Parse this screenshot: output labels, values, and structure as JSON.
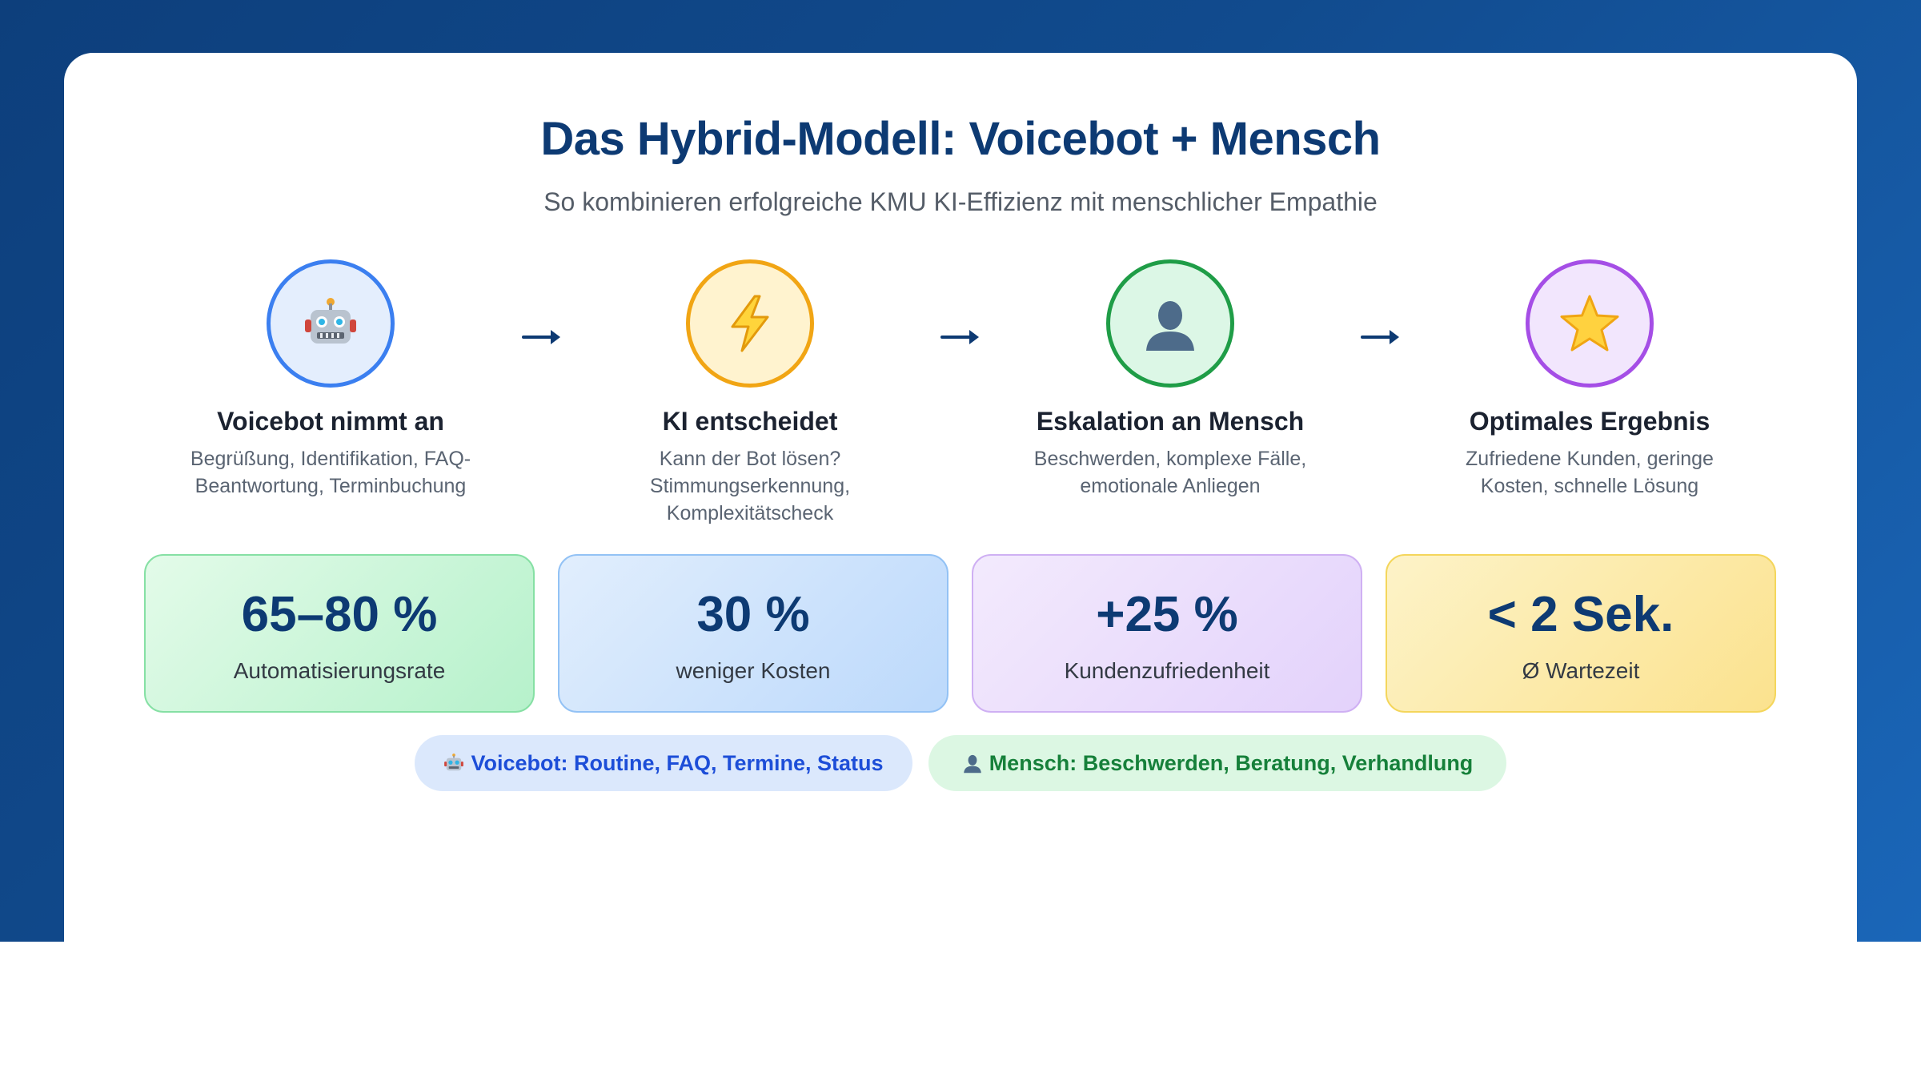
{
  "header": {
    "title": "Das Hybrid-Modell: Voicebot + Mensch",
    "subtitle": "So kombinieren erfolgreiche KMU KI-Effizienz mit menschlicher Empathie"
  },
  "steps": [
    {
      "icon": "robot-icon",
      "color": "#3b7ff0",
      "fill": "#e4eefd",
      "title": "Voicebot nimmt an",
      "desc_line1": "Begrüßung, Identifikation, FAQ-",
      "desc_line2": "Beantwortung, Terminbuchung",
      "desc_line3": ""
    },
    {
      "icon": "lightning-icon",
      "color": "#f1a514",
      "fill": "#fff3cf",
      "title": "KI entscheidet",
      "desc_line1": "Kann der Bot lösen?",
      "desc_line2": "Stimmungserkennung,",
      "desc_line3": "Komplexitätscheck"
    },
    {
      "icon": "person-icon",
      "color": "#1f9d47",
      "fill": "#dcf7e6",
      "title": "Eskalation an Mensch",
      "desc_line1": "Beschwerden, komplexe Fälle,",
      "desc_line2": "emotionale Anliegen",
      "desc_line3": ""
    },
    {
      "icon": "star-icon",
      "color": "#a54ee6",
      "fill": "#f2e6fd",
      "title": "Optimales Ergebnis",
      "desc_line1": "Zufriedene Kunden, geringe",
      "desc_line2": "Kosten, schnelle Lösung",
      "desc_line3": ""
    }
  ],
  "arrow_icon": "arrow-right-icon",
  "stats": [
    {
      "value": "65–80 %",
      "label": "Automatisierungsrate",
      "border": "#86e0a4",
      "bg_from": "#e3fbe9",
      "bg_to": "#b6f1cb"
    },
    {
      "value": "30 %",
      "label": "weniger Kosten",
      "border": "#93c2f5",
      "bg_from": "#e1eefd",
      "bg_to": "#bcd9fb"
    },
    {
      "value": "+25 %",
      "label": "Kundenzufriedenheit",
      "border": "#cfb0f3",
      "bg_from": "#f3eafd",
      "bg_to": "#e3d2fb"
    },
    {
      "value": "< 2 Sek.",
      "label": "Ø Wartezeit",
      "border": "#f4d65c",
      "bg_from": "#fdf3c8",
      "bg_to": "#fbe28e"
    }
  ],
  "pills": [
    {
      "icon": "robot-icon",
      "text": "Voicebot: Routine, FAQ, Termine, Status",
      "color": "#1d4ed8",
      "bg": "#dbe8fc"
    },
    {
      "icon": "person-icon",
      "text": "Mensch: Beschwerden, Beratung, Verhandlung",
      "color": "#16803a",
      "bg": "#dcf7e3"
    }
  ],
  "colors": {
    "background_from": "#0d3f7c",
    "background_to": "#1a66b8",
    "title": "#0d3a73",
    "stat_value": "#0d3a73",
    "arrow": "#0d3a73"
  }
}
